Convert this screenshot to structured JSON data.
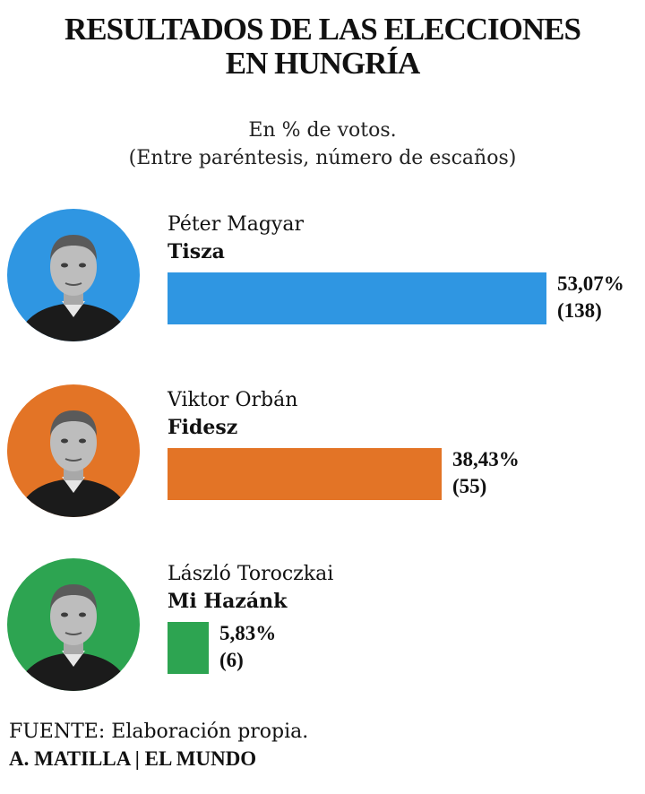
{
  "chart_data": {
    "type": "bar",
    "orientation": "horizontal",
    "title": [
      "RESULTADOS DE  LAS ELECCIONES",
      "EN HUNGRÍA"
    ],
    "subtitle": [
      "En % de votos.",
      "(Entre paréntesis, número de escaños)"
    ],
    "categories": [
      "Tisza",
      "Fidesz",
      "Mi Hazánk"
    ],
    "values": [
      53.07,
      38.43,
      5.83
    ],
    "items": [
      {
        "candidate": "Péter Magyar",
        "party": "Tisza",
        "value": 53.07,
        "value_label": "53,07%",
        "seats": 138,
        "seats_label": "(138)",
        "color": "#2f96e2"
      },
      {
        "candidate": "Viktor Orbán",
        "party": "Fidesz",
        "value": 38.43,
        "value_label": "38,43%",
        "seats": 55,
        "seats_label": "(55)",
        "color": "#e37426"
      },
      {
        "candidate": "László Toroczkai",
        "party": "Mi Hazánk",
        "value": 5.83,
        "value_label": "5,83%",
        "seats": 6,
        "seats_label": "(6)",
        "color": "#2da451"
      }
    ],
    "xlim": [
      0,
      53.07
    ],
    "grid": false,
    "legend": "none"
  },
  "footer": {
    "source_label": "FUENTE:",
    "source_text": " Elaboración propia.",
    "credit": "A. MATILLA | EL MUNDO"
  }
}
